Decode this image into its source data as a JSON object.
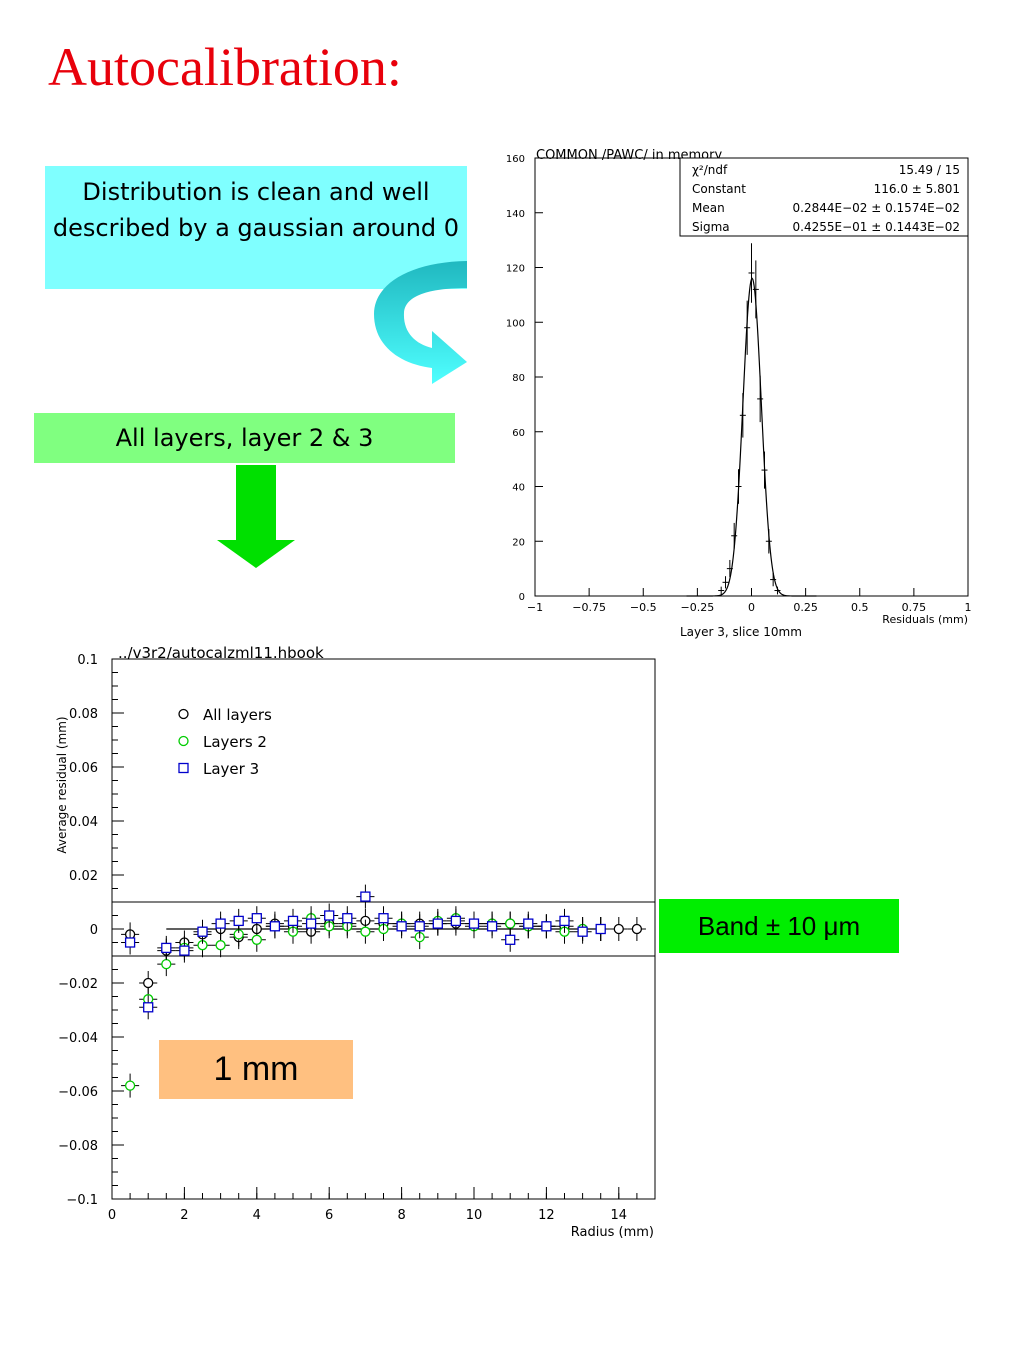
{
  "slide": {
    "title": "Autocalibration:",
    "callout_distribution": "Distribution is clean and well described by a gaussian around 0",
    "callout_layers": "All layers, layer 2 & 3",
    "band_label": "Band ± 10 μm",
    "scale_label": "1 mm",
    "colors": {
      "title": "#e8000b",
      "callout_cyan": "#7fffff",
      "callout_green": "#80ff80",
      "band_label": "#00ee00",
      "scale_label": "#ffc080",
      "arrow_curve": "#2cc8d0",
      "arrow_down": "#00e000"
    }
  },
  "chart_data": [
    {
      "type": "line",
      "title": "COMMON /PAWC/ in memory",
      "xlabel": "Residuals (mm)",
      "ylabel": "",
      "caption": "Layer 3, slice 10mm",
      "xlim": [
        -1,
        1
      ],
      "ylim": [
        0,
        160
      ],
      "xticks": [
        -1,
        -0.75,
        -0.5,
        -0.25,
        0,
        0.25,
        0.5,
        0.75,
        1
      ],
      "xtick_labels": [
        "−1",
        "−0.75",
        "−0.5",
        "−0.25",
        "0",
        "0.25",
        "0.5",
        "0.75",
        "1"
      ],
      "yticks": [
        0,
        20,
        40,
        60,
        80,
        100,
        120,
        140,
        160
      ],
      "grid": false,
      "stats_box": [
        {
          "label": "χ²/ndf",
          "value": "15.49   /   15"
        },
        {
          "label": "Constant",
          "value": "116.0 ±        5.801"
        },
        {
          "label": "Mean",
          "value": "0.2844E−02 ±  0.1574E−02"
        },
        {
          "label": "Sigma",
          "value": "0.4255E−01 ±  0.1443E−02"
        }
      ],
      "fit": {
        "function": "gaussian",
        "constant": 116.0,
        "mean": 0.002844,
        "sigma": 0.04255
      },
      "series": [
        {
          "x": [
            -0.14,
            -0.12,
            -0.1,
            -0.08,
            -0.06,
            -0.04,
            -0.02,
            0.0,
            0.02,
            0.04,
            0.06,
            0.08,
            0.1,
            0.12
          ],
          "values": [
            2,
            5,
            10,
            22,
            40,
            66,
            98,
            118,
            112,
            72,
            46,
            20,
            6,
            2
          ]
        }
      ]
    },
    {
      "type": "scatter",
      "title": "../v3r2/autocalzml11.hbook",
      "xlabel": "Radius (mm)",
      "ylabel": "Average residual (mm)",
      "xlim": [
        0,
        15
      ],
      "ylim": [
        -0.1,
        0.1
      ],
      "xticks": [
        0,
        2,
        4,
        6,
        8,
        10,
        12,
        14
      ],
      "yticks": [
        -0.1,
        -0.08,
        -0.06,
        -0.04,
        -0.02,
        0,
        0.02,
        0.04,
        0.06,
        0.08,
        0.1
      ],
      "ytick_labels": [
        "−0.1",
        "−0.08",
        "−0.06",
        "−0.04",
        "−0.02",
        "0",
        "0.02",
        "0.04",
        "0.06",
        "0.08",
        "0.1"
      ],
      "grid": false,
      "legend_position": "top-left",
      "band": [
        -0.01,
        0.01
      ],
      "series": [
        {
          "name": "All layers",
          "marker": "circle",
          "color": "#000000",
          "x": [
            0.5,
            1.0,
            1.5,
            2.0,
            2.5,
            3.0,
            3.5,
            4.0,
            4.5,
            5.0,
            5.5,
            6.0,
            6.5,
            7.0,
            7.5,
            8.0,
            8.5,
            9.0,
            9.5,
            10.0,
            10.5,
            11.0,
            11.5,
            12.0,
            12.5,
            13.0,
            13.5,
            14.0,
            14.5
          ],
          "values": [
            -0.002,
            -0.02,
            -0.008,
            -0.005,
            -0.002,
            0.0,
            -0.003,
            0.0,
            0.002,
            0.001,
            -0.001,
            0.002,
            0.002,
            0.003,
            0.002,
            0.002,
            0.002,
            0.002,
            0.002,
            0.002,
            0.002,
            0.002,
            0.001,
            0.001,
            0.001,
            0.0,
            0.0,
            0.0,
            0.0
          ]
        },
        {
          "name": "Layers 2",
          "marker": "circle",
          "color": "#00cc00",
          "x": [
            0.5,
            1.0,
            1.5,
            2.0,
            2.5,
            3.0,
            3.5,
            4.0,
            4.5,
            5.0,
            5.5,
            6.0,
            6.5,
            7.0,
            7.5,
            8.0,
            8.5,
            9.0,
            9.5,
            10.0,
            10.5,
            11.0,
            11.5,
            12.0,
            12.5,
            13.0,
            13.5
          ],
          "values": [
            -0.058,
            -0.026,
            -0.013,
            -0.007,
            -0.006,
            -0.006,
            -0.002,
            -0.004,
            0.001,
            -0.001,
            0.004,
            0.001,
            0.001,
            -0.001,
            0.0,
            0.002,
            -0.003,
            0.003,
            0.004,
            0.001,
            0.002,
            0.002,
            0.001,
            0.001,
            -0.001,
            0.0,
            0.0
          ]
        },
        {
          "name": "Layer 3",
          "marker": "square",
          "color": "#0000cc",
          "x": [
            0.5,
            1.0,
            1.5,
            2.0,
            2.5,
            3.0,
            3.5,
            4.0,
            4.5,
            5.0,
            5.5,
            6.0,
            6.5,
            7.0,
            7.5,
            8.0,
            8.5,
            9.0,
            9.5,
            10.0,
            10.5,
            11.0,
            11.5,
            12.0,
            12.5,
            13.0,
            13.5
          ],
          "values": [
            -0.005,
            -0.029,
            -0.007,
            -0.008,
            -0.001,
            0.002,
            0.003,
            0.004,
            0.001,
            0.003,
            0.002,
            0.005,
            0.004,
            0.012,
            0.004,
            0.001,
            0.001,
            0.002,
            0.003,
            0.002,
            0.001,
            -0.004,
            0.002,
            0.001,
            0.003,
            -0.001,
            0.0
          ]
        }
      ]
    }
  ]
}
